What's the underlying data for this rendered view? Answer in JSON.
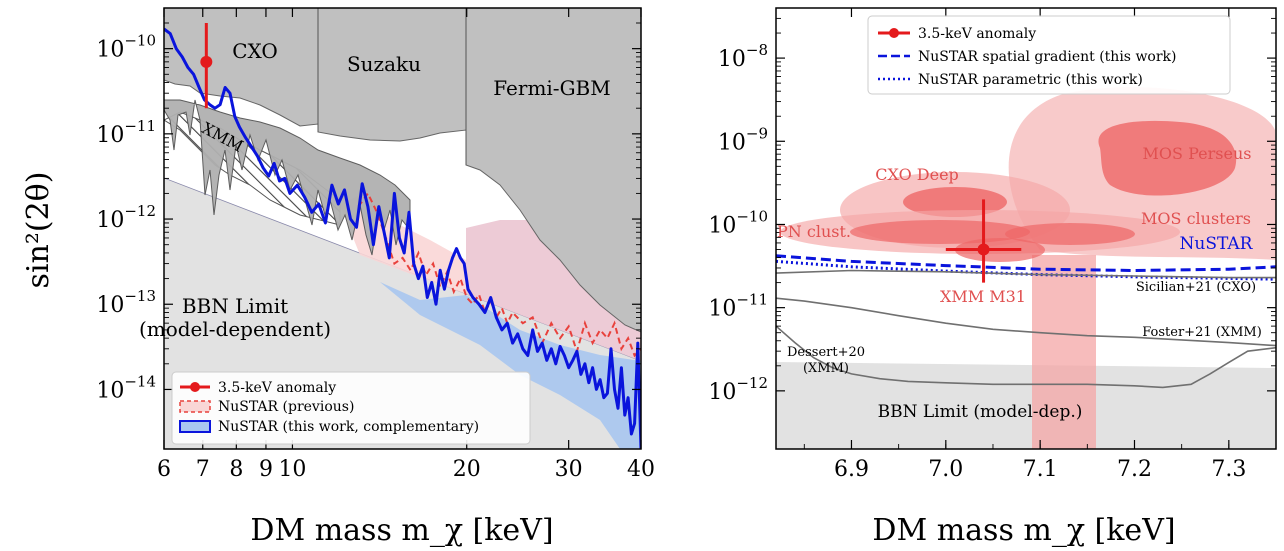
{
  "figure": {
    "ylabel": "sin²(2θ)"
  },
  "chart_data": [
    {
      "type": "line",
      "scale": "log-log",
      "xlabel": "DM mass m_χ [keV]",
      "ylabel": "sin²(2θ)",
      "xlim": [
        6,
        40
      ],
      "ylim": [
        2e-15,
        3e-10
      ],
      "xticks": [
        6,
        7,
        8,
        9,
        10,
        20,
        30,
        40
      ],
      "xtick_labels": [
        "6",
        "7",
        "8",
        "9",
        "10",
        "20",
        "30",
        "40"
      ],
      "yticks": [
        1e-14,
        1e-13,
        1e-12,
        1e-11,
        1e-10
      ],
      "ytick_labels": [
        [
          "10",
          "−14"
        ],
        [
          "10",
          "−13"
        ],
        [
          "10",
          "−12"
        ],
        [
          "10",
          "−11"
        ],
        [
          "10",
          "−10"
        ]
      ],
      "annotations": [
        "CXO",
        "Suzaku",
        "Fermi-GBM",
        "XMM",
        "BBN Limit",
        "(model-dependent)"
      ],
      "legend": {
        "placement": "lower-left",
        "entries": [
          "3.5-keV anomaly",
          "NuSTAR (previous)",
          "NuSTAR (this work, complementary)"
        ]
      },
      "colors": {
        "excluded": "#c0c0c0",
        "bbn": "#e2e2e2",
        "fermi": "#ecc8d4",
        "previous": "#e8413c",
        "this_work": "#0a14dc",
        "this_work_fill": "#a9c6f0",
        "anomaly": "#e41a1c"
      },
      "anomaly_point": {
        "x": 7.1,
        "y": 7e-11,
        "y_err": [
          2e-11,
          2e-10
        ]
      },
      "series": [
        {
          "name": "NuSTAR (this work, complementary)",
          "x": [
            6.0,
            6.15,
            6.3,
            6.45,
            6.6,
            6.75,
            6.9,
            7.05,
            7.2,
            7.35,
            7.5,
            7.65,
            7.8,
            7.95,
            8.1,
            8.3,
            8.5,
            8.7,
            8.9,
            9.1,
            9.3,
            9.5,
            9.7,
            9.9,
            10.2,
            10.5,
            10.8,
            11.1,
            11.4,
            11.7,
            12.0,
            12.3,
            12.6,
            12.9,
            13.2,
            13.5,
            13.8,
            14.1,
            14.4,
            14.7,
            15.0,
            15.3,
            15.6,
            15.9,
            16.2,
            16.5,
            16.8,
            17.1,
            17.4,
            17.7,
            18.0,
            18.3,
            18.6,
            18.9,
            19.2,
            19.5,
            19.8,
            20.1,
            20.5,
            21.0,
            21.5,
            22.0,
            22.5,
            23.0,
            23.5,
            24.0,
            24.5,
            25.0,
            25.5,
            26.0,
            26.5,
            27.0,
            27.5,
            28.0,
            28.5,
            29.0,
            29.5,
            30.0,
            30.5,
            31.0,
            31.5,
            32.0,
            32.5,
            33.0,
            33.5,
            34.0,
            34.5,
            35.0,
            35.5,
            36.0,
            36.5,
            37.0,
            37.5,
            38.0,
            38.5,
            39.0,
            39.5,
            40.0
          ],
          "y": [
            1.7e-10,
            1.5e-10,
            1e-10,
            8e-11,
            6e-11,
            5e-11,
            3.5e-11,
            2.5e-11,
            2.2e-11,
            2e-11,
            2.2e-11,
            3.5e-11,
            3e-11,
            1.6e-11,
            1.2e-11,
            9e-12,
            7e-12,
            5.5e-12,
            4e-12,
            3.2e-12,
            4.5e-12,
            2.8e-12,
            3e-12,
            2e-12,
            2.5e-12,
            1.8e-12,
            1.2e-12,
            1.5e-12,
            9e-13,
            2.5e-12,
            1.5e-12,
            2.2e-12,
            1e-12,
            8e-13,
            2.6e-12,
            1.4e-12,
            5e-13,
            1.4e-12,
            7e-13,
            3.5e-13,
            2e-12,
            6e-13,
            4e-13,
            1.2e-12,
            3e-13,
            2e-13,
            2.8e-13,
            1.2e-13,
            1.8e-13,
            1e-13,
            2.5e-13,
            1.5e-13,
            2.5e-13,
            3.5e-13,
            4.5e-13,
            3.5e-13,
            3e-13,
            1.5e-13,
            1.2e-13,
            1e-13,
            8e-14,
            1.2e-13,
            7e-14,
            5e-14,
            6e-14,
            3.5e-14,
            4.5e-14,
            3e-14,
            2.5e-14,
            5e-14,
            2.8e-14,
            3.5e-14,
            2.2e-14,
            3e-14,
            2e-14,
            3.2e-14,
            2.5e-14,
            1.8e-14,
            2.2e-14,
            2.8e-14,
            1.5e-14,
            2e-14,
            1.2e-14,
            1.8e-14,
            1e-14,
            1.3e-14,
            8e-15,
            9e-15,
            3e-14,
            1e-14,
            6e-15,
            1.8e-14,
            5e-15,
            8e-15,
            3e-15,
            4e-15,
            3.5e-14,
            2e-15
          ]
        },
        {
          "name": "NuSTAR (previous)",
          "x": [
            13.0,
            13.5,
            14.0,
            14.5,
            15.0,
            15.5,
            16.0,
            16.5,
            17.0,
            17.5,
            18.0,
            18.5,
            19.0,
            19.5,
            20.0,
            20.5,
            21.0,
            21.5,
            22.0,
            22.5,
            23.0,
            23.5,
            24.0,
            25.0,
            26.0,
            27.0,
            28.0,
            29.0,
            30.0,
            31.0,
            32.0,
            33.0,
            34.0,
            35.0,
            36.0,
            37.0,
            38.0,
            39.0,
            40.0
          ],
          "y": [
            1.4e-12,
            2e-12,
            1.2e-12,
            6e-13,
            3e-13,
            3.5e-13,
            2.5e-13,
            4e-13,
            2.2e-13,
            3e-13,
            1.6e-13,
            2.4e-13,
            1.4e-13,
            2e-13,
            1.2e-13,
            1e-13,
            1.3e-13,
            8e-14,
            1.1e-13,
            7e-14,
            9e-14,
            6e-14,
            8e-14,
            6e-14,
            7e-14,
            3.5e-14,
            6e-14,
            4e-14,
            5.5e-14,
            2.8e-14,
            6e-14,
            3.5e-14,
            5e-14,
            4e-14,
            6e-14,
            3e-14,
            4e-14,
            2.5e-14,
            3e-14
          ]
        }
      ]
    },
    {
      "type": "line",
      "scale": "linear-x log-y",
      "xlabel": "DM mass m_χ [keV]",
      "ylabel": "",
      "xlim": [
        6.82,
        7.35
      ],
      "ylim": [
        2e-13,
        4e-08
      ],
      "xticks": [
        6.9,
        7.0,
        7.1,
        7.2,
        7.3
      ],
      "xtick_labels": [
        "6.9",
        "7.0",
        "7.1",
        "7.2",
        "7.3"
      ],
      "yticks": [
        1e-12,
        1e-11,
        1e-10,
        1e-09,
        1e-08
      ],
      "ytick_labels": [
        [
          "10",
          "−12"
        ],
        [
          "10",
          "−11"
        ],
        [
          "10",
          "−10"
        ],
        [
          "10",
          "−9"
        ],
        [
          "10",
          "−8"
        ]
      ],
      "annotations": [
        "CXO Deep",
        "MOS Perseus",
        "PN clust.",
        "MOS clusters",
        "NuSTAR",
        "XMM M31",
        "Sicilian+21 (CXO)",
        "Foster+21 (XMM)",
        "Dessert+20",
        "(XMM)",
        "BBN Limit (model-dep.)"
      ],
      "legend": {
        "placement": "top-center",
        "entries": [
          "3.5-keV anomaly",
          "NuSTAR spatial gradient (this work)",
          "NuSTAR parametric (this work)"
        ]
      },
      "colors": {
        "regions": "#f4a6a6",
        "region_cores": "#ee6666",
        "labels": "#e05050",
        "nustar": "#0a14dc",
        "gray_lines": "#707070",
        "bbn": "#e2e2e2"
      },
      "anomaly_point": {
        "x": 7.04,
        "y": 5e-11,
        "x_err": [
          7.0,
          7.08
        ],
        "y_err": [
          2e-11,
          2e-10
        ]
      },
      "series": [
        {
          "name": "NuSTAR spatial gradient (this work)",
          "x": [
            6.82,
            6.9,
            7.0,
            7.1,
            7.2,
            7.3,
            7.35
          ],
          "y": [
            4.2e-11,
            3.6e-11,
            3.2e-11,
            2.9e-11,
            2.8e-11,
            2.9e-11,
            3.1e-11
          ]
        },
        {
          "name": "NuSTAR parametric (this work)",
          "x": [
            6.82,
            6.9,
            7.0,
            7.1,
            7.2,
            7.3,
            7.35
          ],
          "y": [
            3.6e-11,
            3.1e-11,
            2.75e-11,
            2.5e-11,
            2.35e-11,
            2.25e-11,
            2.2e-11
          ]
        },
        {
          "name": "Sicilian+21 (CXO)",
          "x": [
            6.82,
            6.9,
            7.0,
            7.1,
            7.2,
            7.3,
            7.35
          ],
          "y": [
            2.6e-11,
            2.8e-11,
            2.7e-11,
            2.5e-11,
            2.4e-11,
            2.3e-11,
            2.3e-11
          ]
        },
        {
          "name": "Foster+21 (XMM)",
          "x": [
            6.82,
            6.85,
            6.9,
            6.95,
            7.0,
            7.05,
            7.1,
            7.15,
            7.2,
            7.25,
            7.3,
            7.35
          ],
          "y": [
            1.3e-11,
            1.2e-11,
            1e-11,
            8e-12,
            6.5e-12,
            5.5e-12,
            5e-12,
            4.6e-12,
            4.4e-12,
            4.1e-12,
            3.8e-12,
            3.5e-12
          ]
        },
        {
          "name": "Dessert+20 (XMM)",
          "x": [
            6.82,
            6.84,
            6.86,
            6.88,
            6.9,
            6.93,
            6.96,
            7.0,
            7.05,
            7.1,
            7.15,
            7.2,
            7.23,
            7.26,
            7.28,
            7.3,
            7.32,
            7.35
          ],
          "y": [
            6e-12,
            3.8e-12,
            2.5e-12,
            1.9e-12,
            1.6e-12,
            1.4e-12,
            1.3e-12,
            1.25e-12,
            1.2e-12,
            1.2e-12,
            1.2e-12,
            1.15e-12,
            1.1e-12,
            1.2e-12,
            1.6e-12,
            2.2e-12,
            3e-12,
            3.3e-12
          ]
        }
      ]
    }
  ]
}
